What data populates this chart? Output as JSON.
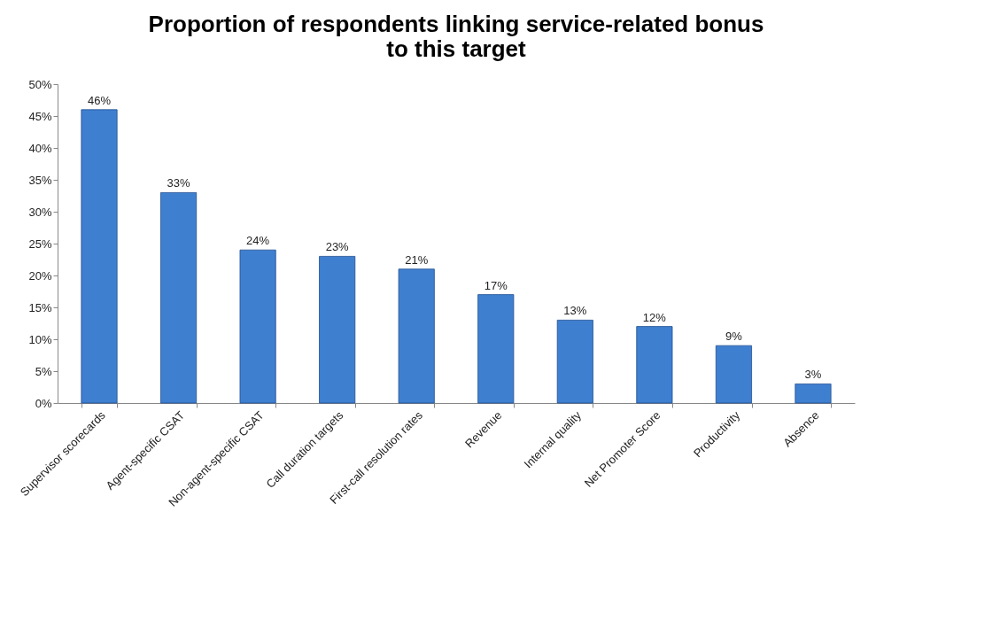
{
  "chart_data": {
    "type": "bar",
    "title": [
      "Proportion of respondents linking service-related bonus",
      "to this target"
    ],
    "categories": [
      "Supervisor scorecards",
      "Agent-specific CSAT",
      "Non-agent-specific CSAT",
      "Call duration targets",
      "First-call resolution rates",
      "Revenue",
      "Internal quality",
      "Net Promoter Score",
      "Productivity",
      "Absence"
    ],
    "values": [
      46,
      33,
      24,
      23,
      21,
      17,
      13,
      12,
      9,
      3
    ],
    "value_labels": [
      "46%",
      "33%",
      "24%",
      "23%",
      "21%",
      "17%",
      "13%",
      "12%",
      "9%",
      "3%"
    ],
    "color": "#3f7fd0",
    "ylim": [
      0,
      50
    ],
    "yticks": [
      {
        "value": 0,
        "label": "0%"
      },
      {
        "value": 5,
        "label": "5%"
      },
      {
        "value": 10,
        "label": "10%"
      },
      {
        "value": 15,
        "label": "15%"
      },
      {
        "value": 20,
        "label": "20%"
      },
      {
        "value": 25,
        "label": "25%"
      },
      {
        "value": 30,
        "label": "30%"
      },
      {
        "value": 35,
        "label": "35%"
      },
      {
        "value": 40,
        "label": "40%"
      },
      {
        "value": 45,
        "label": "45%"
      },
      {
        "value": 50,
        "label": "50%"
      }
    ],
    "grid": false
  }
}
